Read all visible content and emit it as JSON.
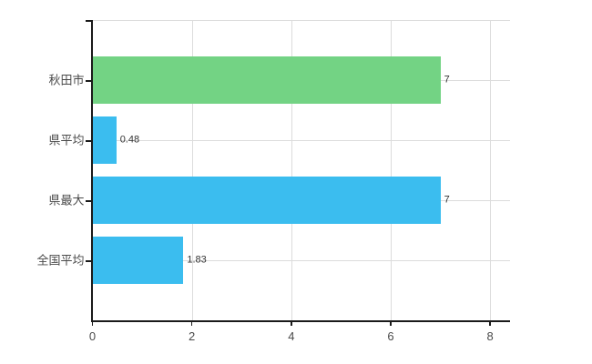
{
  "chart_data": {
    "type": "bar",
    "orientation": "horizontal",
    "categories": [
      "秋田市",
      "県平均",
      "県最大",
      "全国平均"
    ],
    "values": [
      7,
      0.48,
      7,
      1.83
    ],
    "value_labels": [
      "7",
      "0.48",
      "7",
      "1.83"
    ],
    "bar_colors": [
      "#73d384",
      "#3bbdef",
      "#3bbdef",
      "#3bbdef"
    ],
    "xlim": [
      0,
      8.4
    ],
    "xticks": [
      0,
      2,
      4,
      6,
      8
    ],
    "xtick_labels": [
      "0",
      "2",
      "4",
      "6",
      "8"
    ],
    "grid": true,
    "legend": "none"
  },
  "colors": {
    "background": "#ffffff",
    "axis": "#1a1a1a",
    "gridline": "#dcdcdc",
    "category_text": "#4a4a4a",
    "value_text": "#333333",
    "green_bar": "#73d384",
    "blue_bar": "#3bbdef"
  }
}
